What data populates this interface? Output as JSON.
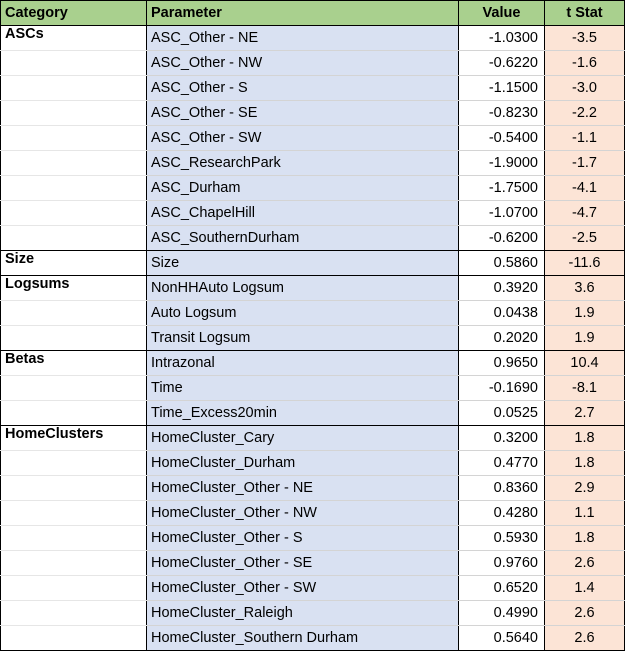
{
  "headers": {
    "category": "Category",
    "parameter": "Parameter",
    "value": "Value",
    "tstat": "t Stat"
  },
  "groups": [
    {
      "category": "ASCs",
      "rows": [
        {
          "parameter": "ASC_Other - NE",
          "value": "-1.0300",
          "tstat": "-3.5"
        },
        {
          "parameter": "ASC_Other - NW",
          "value": "-0.6220",
          "tstat": "-1.6"
        },
        {
          "parameter": "ASC_Other - S",
          "value": "-1.1500",
          "tstat": "-3.0"
        },
        {
          "parameter": "ASC_Other - SE",
          "value": "-0.8230",
          "tstat": "-2.2"
        },
        {
          "parameter": "ASC_Other - SW",
          "value": "-0.5400",
          "tstat": "-1.1"
        },
        {
          "parameter": "ASC_ResearchPark",
          "value": "-1.9000",
          "tstat": "-1.7"
        },
        {
          "parameter": "ASC_Durham",
          "value": "-1.7500",
          "tstat": "-4.1"
        },
        {
          "parameter": "ASC_ChapelHill",
          "value": "-1.0700",
          "tstat": "-4.7"
        },
        {
          "parameter": "ASC_SouthernDurham",
          "value": "-0.6200",
          "tstat": "-2.5"
        }
      ]
    },
    {
      "category": "Size",
      "rows": [
        {
          "parameter": "Size",
          "value": "0.5860",
          "tstat": "-11.6"
        }
      ]
    },
    {
      "category": "Logsums",
      "rows": [
        {
          "parameter": "NonHHAuto Logsum",
          "value": "0.3920",
          "tstat": "3.6"
        },
        {
          "parameter": "Auto Logsum",
          "value": "0.0438",
          "tstat": "1.9"
        },
        {
          "parameter": "Transit Logsum",
          "value": "0.2020",
          "tstat": "1.9"
        }
      ]
    },
    {
      "category": "Betas",
      "rows": [
        {
          "parameter": "Intrazonal",
          "value": "0.9650",
          "tstat": "10.4"
        },
        {
          "parameter": "Time",
          "value": "-0.1690",
          "tstat": "-8.1"
        },
        {
          "parameter": "Time_Excess20min",
          "value": "0.0525",
          "tstat": "2.7"
        }
      ]
    },
    {
      "category": "HomeClusters",
      "rows": [
        {
          "parameter": "HomeCluster_Cary",
          "value": "0.3200",
          "tstat": "1.8"
        },
        {
          "parameter": "HomeCluster_Durham",
          "value": "0.4770",
          "tstat": "1.8"
        },
        {
          "parameter": "HomeCluster_Other - NE",
          "value": "0.8360",
          "tstat": "2.9"
        },
        {
          "parameter": "HomeCluster_Other - NW",
          "value": "0.4280",
          "tstat": "1.1"
        },
        {
          "parameter": "HomeCluster_Other - S",
          "value": "0.5930",
          "tstat": "1.8"
        },
        {
          "parameter": "HomeCluster_Other - SE",
          "value": "0.9760",
          "tstat": "2.6"
        },
        {
          "parameter": "HomeCluster_Other - SW",
          "value": "0.6520",
          "tstat": "1.4"
        },
        {
          "parameter": "HomeCluster_Raleigh",
          "value": "0.4990",
          "tstat": "2.6"
        },
        {
          "parameter": "HomeCluster_Southern Durham",
          "value": "0.5640",
          "tstat": "2.6"
        }
      ]
    }
  ],
  "colors": {
    "header": "#a9d08e",
    "parameter": "#d9e1f2",
    "tstat": "#fce4d6"
  }
}
